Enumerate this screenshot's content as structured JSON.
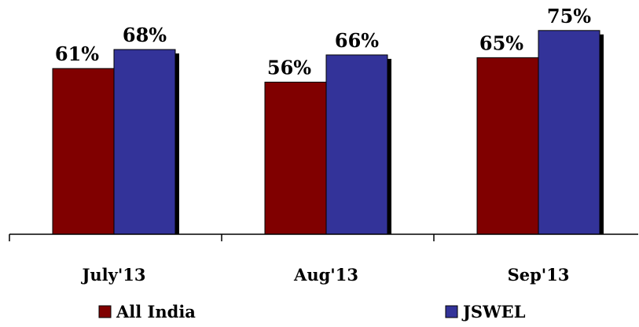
{
  "chart_data": {
    "type": "bar",
    "categories": [
      "July'13",
      "Aug'13",
      "Sep'13"
    ],
    "series": [
      {
        "name": "All India",
        "values": [
          61,
          56,
          65
        ],
        "labels": [
          "61%",
          "56%",
          "65%"
        ],
        "color": "#800000"
      },
      {
        "name": "JSWEL",
        "values": [
          68,
          66,
          75
        ],
        "labels": [
          "68%",
          "66%",
          "75%"
        ],
        "color": "#333399"
      }
    ],
    "ylim": [
      0,
      80
    ],
    "grid": false,
    "legend_position": "bottom"
  }
}
